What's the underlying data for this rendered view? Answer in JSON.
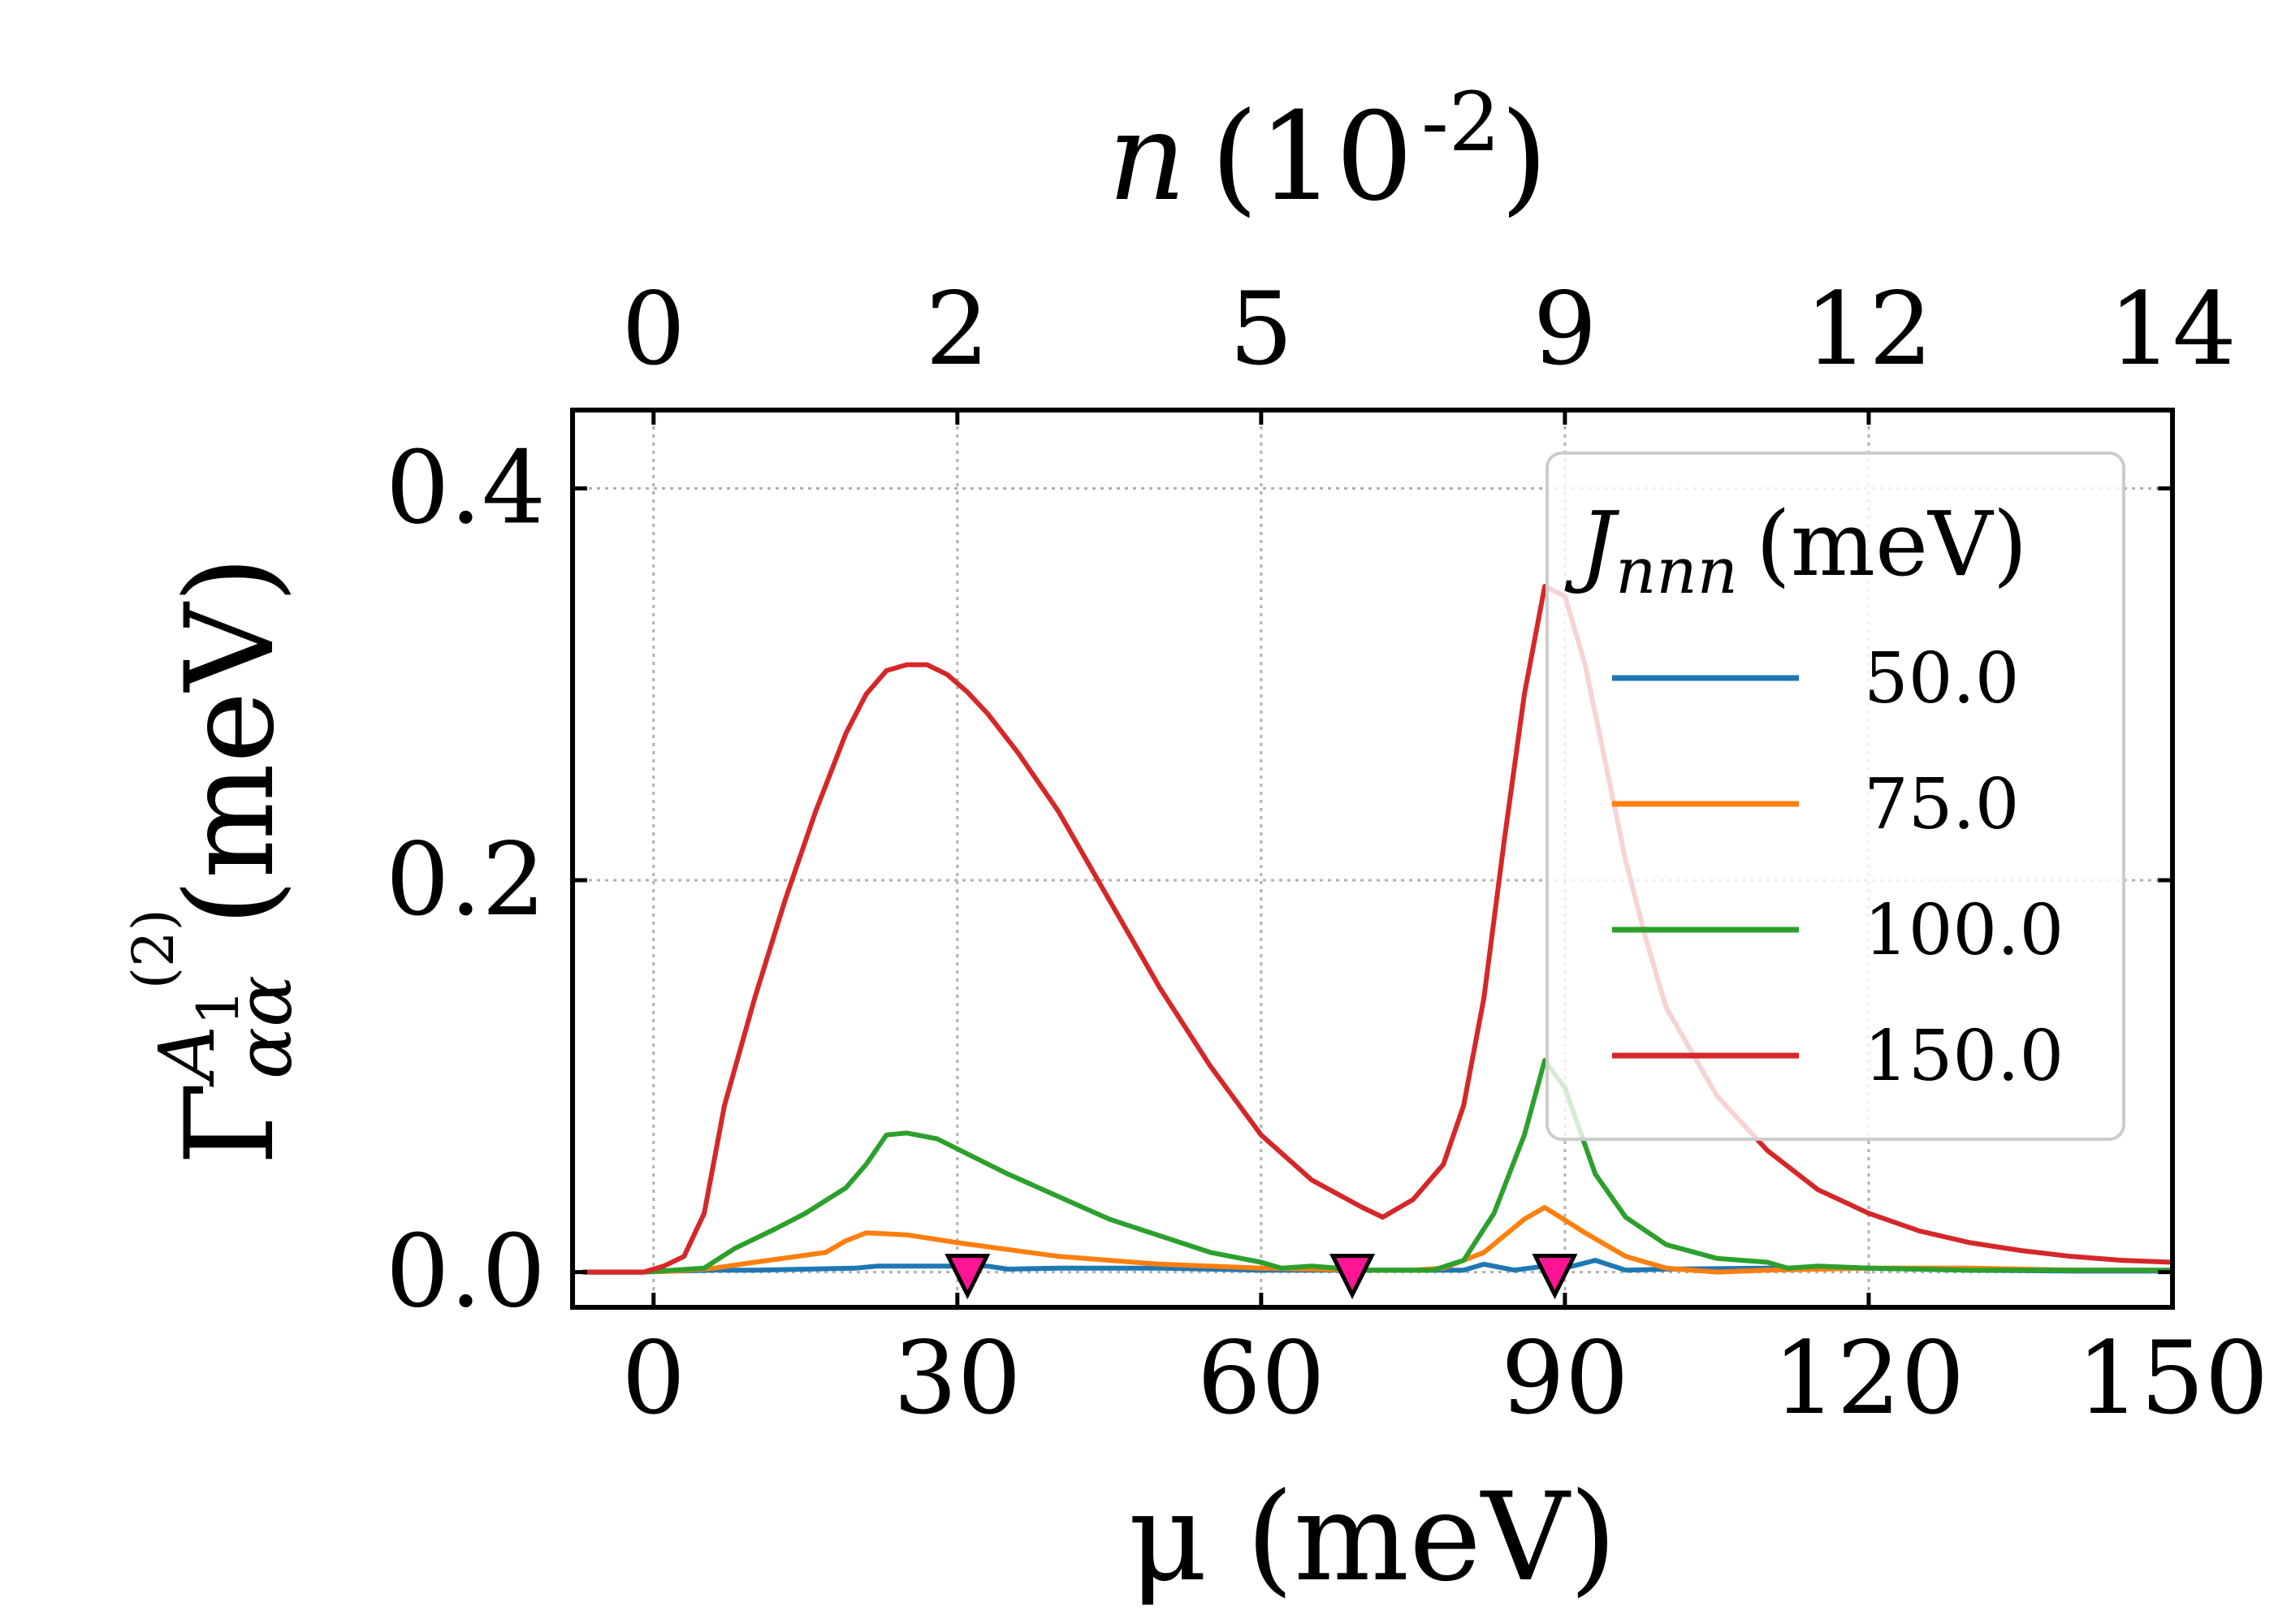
{
  "chart_data": {
    "type": "line",
    "xlabel": "μ (meV)",
    "ylabel": "Γ",
    "ylabel_superscript": "A",
    "ylabel_superscript_sub": "1",
    "ylabel_subscript": "αα",
    "ylabel_order": "(2)",
    "ylabel_unit": "(meV)",
    "top_xlabel": "n",
    "top_xlabel_unit": "(10",
    "top_xlabel_exp": "-2",
    "top_xlabel_close": ")",
    "xlim": [
      -8,
      150
    ],
    "ylim": [
      -0.018,
      0.44
    ],
    "xticks": [
      0,
      30,
      60,
      90,
      120,
      150
    ],
    "xtick_labels": [
      "0",
      "30",
      "60",
      "90",
      "120",
      "150"
    ],
    "yticks": [
      0.0,
      0.2,
      0.4
    ],
    "ytick_labels": [
      "0.0",
      "0.2",
      "0.4"
    ],
    "top_ticks": [
      0,
      30,
      60,
      90,
      120,
      150
    ],
    "top_tick_labels": [
      "0",
      "2",
      "5",
      "9",
      "12",
      "14"
    ],
    "grid": true,
    "legend": {
      "title": "J",
      "title_subscript": "nnn",
      "title_unit": "(meV)",
      "placement": "top-right",
      "entries": [
        "50.0",
        "75.0",
        "100.0",
        "150.0"
      ]
    },
    "series": [
      {
        "name": "50.0",
        "color": "#1f77b4",
        "x": [
          -7,
          -1,
          2,
          6,
          10,
          15,
          20,
          22,
          25,
          30,
          33,
          35,
          40,
          50,
          60,
          70,
          80,
          82,
          85,
          88,
          90,
          93,
          96,
          100,
          110,
          120,
          130,
          140,
          150
        ],
        "y": [
          0.0,
          0.0,
          0.0005,
          0.001,
          0.001,
          0.0015,
          0.002,
          0.003,
          0.003,
          0.003,
          0.003,
          0.0015,
          0.002,
          0.002,
          0.001,
          0.001,
          0.001,
          0.004,
          0.001,
          0.003,
          0.002,
          0.006,
          0.001,
          0.0015,
          0.002,
          0.002,
          0.001,
          0.0005,
          0.0005
        ]
      },
      {
        "name": "75.0",
        "color": "#ff7f0e",
        "x": [
          -7,
          -1,
          2,
          6,
          10,
          17,
          19,
          21,
          25,
          30,
          40,
          50,
          60,
          70,
          75,
          78,
          82,
          86,
          88,
          92,
          96,
          100,
          105,
          110,
          120,
          130,
          140,
          150
        ],
        "y": [
          0.0,
          0.0,
          0.0005,
          0.002,
          0.005,
          0.01,
          0.016,
          0.02,
          0.019,
          0.015,
          0.008,
          0.004,
          0.002,
          0.001,
          0.001,
          0.002,
          0.01,
          0.027,
          0.033,
          0.02,
          0.008,
          0.002,
          0.0,
          0.001,
          0.002,
          0.002,
          0.001,
          0.001
        ]
      },
      {
        "name": "100.0",
        "color": "#2ca02c",
        "x": [
          -7,
          -1,
          5,
          8,
          12,
          15,
          19,
          21,
          23,
          25,
          28,
          35,
          45,
          55,
          60,
          62,
          65,
          70,
          77,
          80,
          83,
          86,
          88,
          90,
          93,
          96,
          100,
          105,
          110,
          112,
          115,
          120,
          130,
          140,
          150
        ],
        "y": [
          0.0,
          0.0,
          0.002,
          0.012,
          0.022,
          0.03,
          0.043,
          0.055,
          0.07,
          0.071,
          0.068,
          0.05,
          0.027,
          0.01,
          0.005,
          0.002,
          0.003,
          0.001,
          0.001,
          0.006,
          0.03,
          0.07,
          0.108,
          0.094,
          0.05,
          0.028,
          0.014,
          0.007,
          0.005,
          0.002,
          0.003,
          0.002,
          0.001,
          0.001,
          0.001
        ]
      },
      {
        "name": "150.0",
        "color": "#d62728",
        "x": [
          -7,
          -1,
          1,
          3,
          5,
          7,
          10,
          13,
          16,
          19,
          21,
          23,
          25,
          27,
          29,
          31,
          33,
          36,
          40,
          45,
          50,
          55,
          60,
          65,
          70,
          72,
          75,
          78,
          80,
          82,
          84,
          86,
          88,
          90,
          92,
          94,
          96,
          98,
          100,
          105,
          110,
          115,
          120,
          125,
          130,
          135,
          140,
          145,
          150
        ],
        "y": [
          0.0,
          0.0,
          0.003,
          0.008,
          0.03,
          0.085,
          0.14,
          0.19,
          0.235,
          0.275,
          0.295,
          0.307,
          0.31,
          0.31,
          0.305,
          0.296,
          0.285,
          0.265,
          0.235,
          0.19,
          0.145,
          0.105,
          0.07,
          0.047,
          0.033,
          0.028,
          0.037,
          0.055,
          0.085,
          0.14,
          0.22,
          0.295,
          0.35,
          0.345,
          0.31,
          0.26,
          0.21,
          0.17,
          0.135,
          0.09,
          0.062,
          0.042,
          0.03,
          0.021,
          0.015,
          0.011,
          0.008,
          0.006,
          0.005
        ]
      }
    ],
    "markers": {
      "shape": "down-triangle",
      "color": "#ff1493",
      "x": [
        31,
        69,
        89
      ],
      "y": [
        0.0,
        0.0,
        0.0
      ]
    }
  }
}
